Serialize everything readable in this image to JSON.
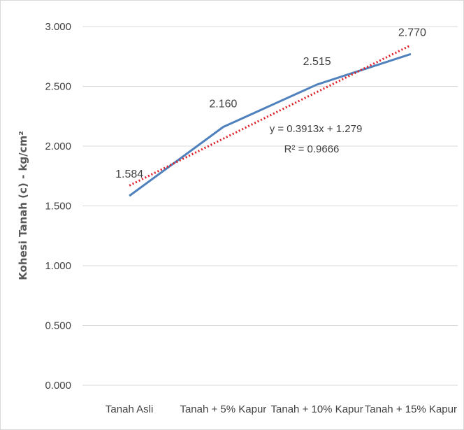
{
  "chart_data": {
    "type": "line",
    "categories": [
      "Tanah Asli",
      "Tanah + 5% Kapur",
      "Tanah + 10% Kapur",
      "Tanah + 15% Kapur"
    ],
    "series": [
      {
        "values": [
          1.584,
          2.16,
          2.515,
          2.77
        ],
        "color": "#4f81bd"
      }
    ],
    "data_labels": [
      "1.584",
      "2.160",
      "2.515",
      "2.770"
    ],
    "trendline": {
      "type": "linear",
      "slope": 0.3913,
      "intercept": 1.279,
      "color": "#e0202a",
      "style": "dotted",
      "equation": "y = 0.3913x + 1.279",
      "r_squared": "R² = 0.9666"
    },
    "ylabel": "Kohesi Tanah (c)  - kg/cm²",
    "xlabel": "",
    "ylim": [
      0,
      3
    ],
    "y_ticks": [
      "0.000",
      "0.500",
      "1.000",
      "1.500",
      "2.000",
      "2.500",
      "3.000"
    ],
    "grid": true,
    "grid_color": "#d9d9d9"
  }
}
